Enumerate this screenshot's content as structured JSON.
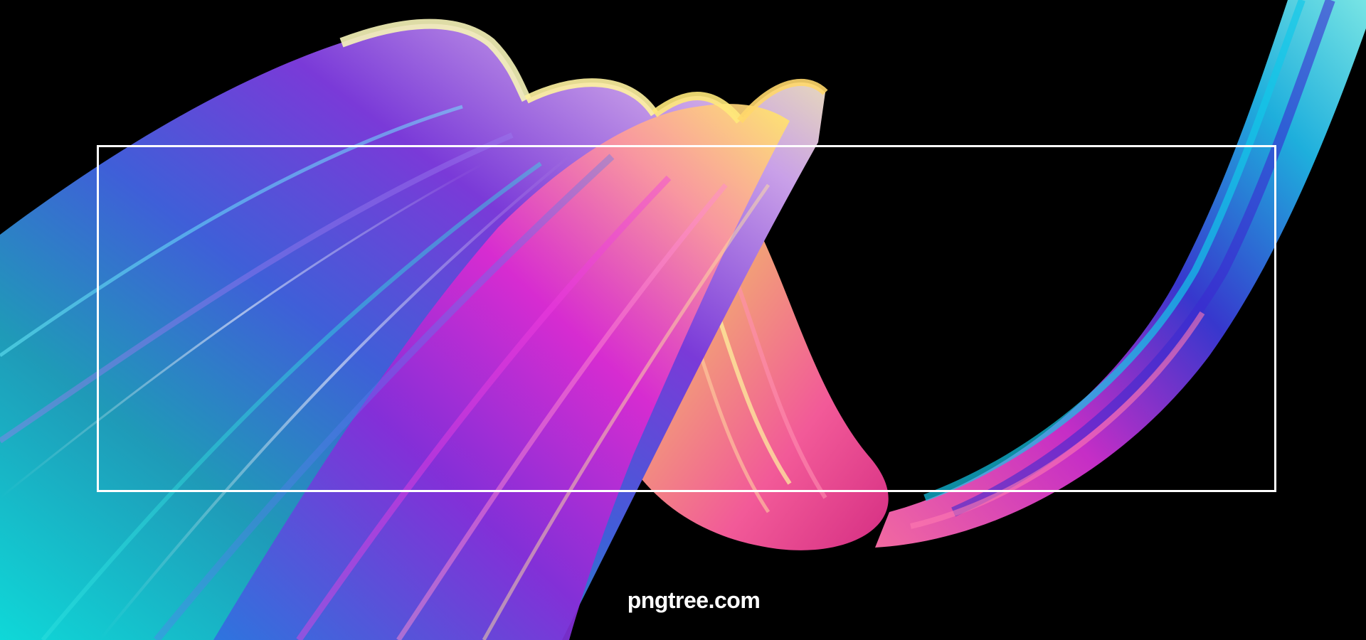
{
  "scene": {
    "background_color": "#000000",
    "frame_color": "#ffffff",
    "ribbon_colors": {
      "cyan": "#18d8e0",
      "teal": "#0f8a9a",
      "blue": "#2f5fe0",
      "violet": "#7a3ad8",
      "magenta": "#d62ad8",
      "pink": "#ff5fa0",
      "peach": "#ffb07a",
      "yellow": "#ffe96a",
      "pale_yellow": "#f4f1a8"
    }
  },
  "watermark": {
    "text": "pngtree.com"
  }
}
